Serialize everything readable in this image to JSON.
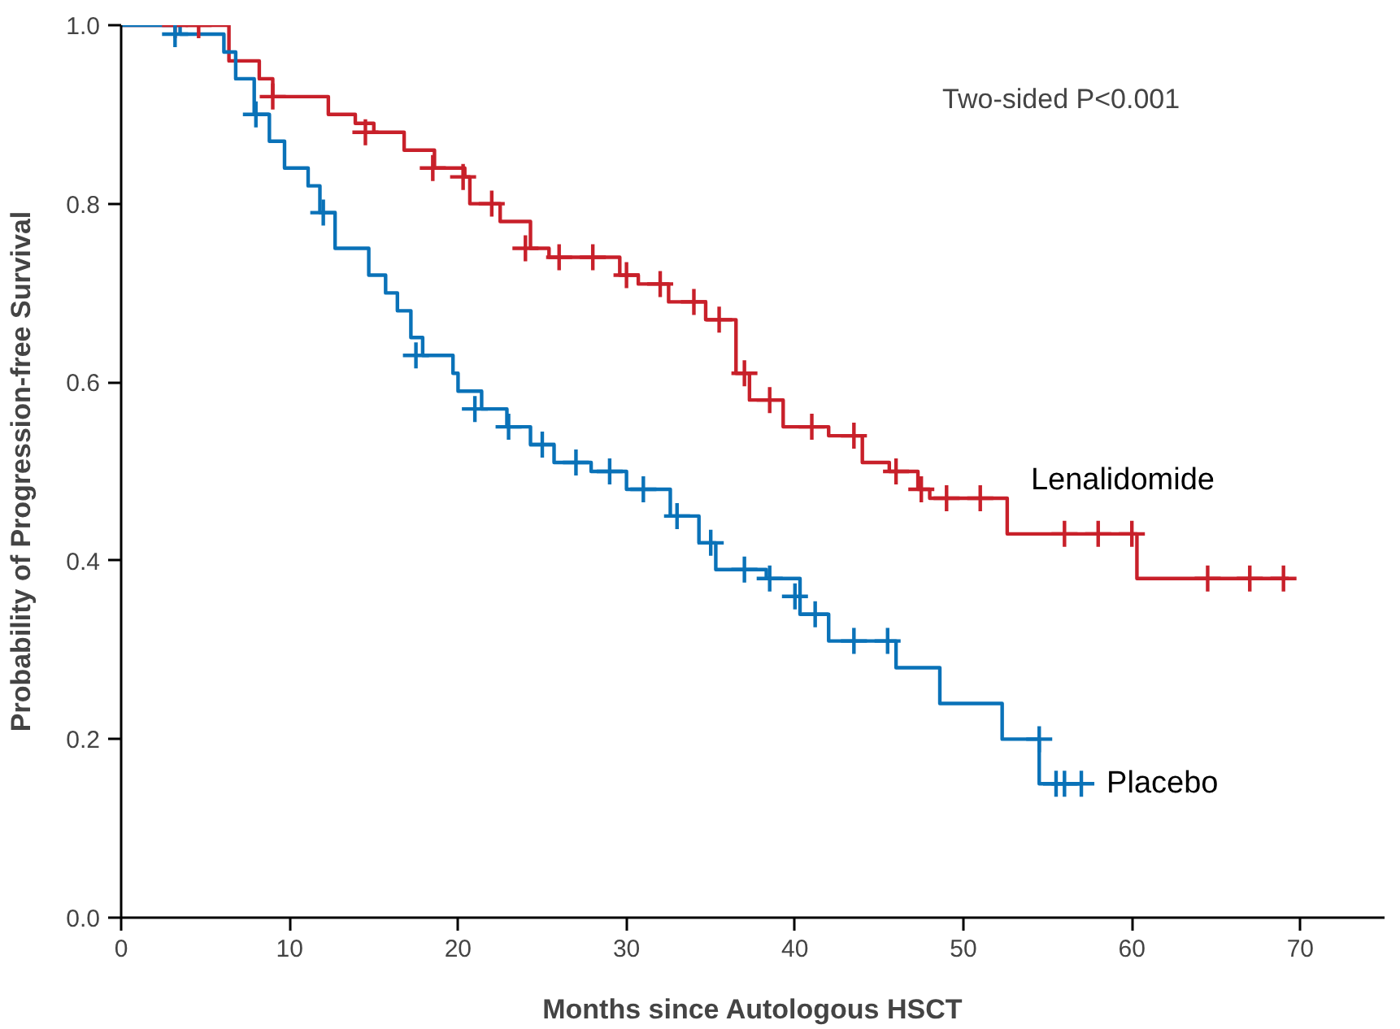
{
  "chart_data": {
    "type": "step",
    "xlabel": "Months since Autologous HSCT",
    "ylabel": "Probability of Progression-free Survival",
    "annotations": [
      "Two-sided P<0.001"
    ],
    "xlim": [
      0,
      75
    ],
    "ylim": [
      0,
      1.0
    ],
    "xticks": [
      0,
      10,
      20,
      30,
      40,
      50,
      60,
      70
    ],
    "yticks": [
      {
        "value": 0,
        "label": "0.0"
      },
      {
        "value": 0.2,
        "label": "0.2"
      },
      {
        "value": 0.4,
        "label": "0.4"
      },
      {
        "value": 0.6,
        "label": "0.6"
      },
      {
        "value": 0.8,
        "label": "0.8"
      },
      {
        "value": 1.0,
        "label": "1.0"
      }
    ],
    "grid": false,
    "marker": "none",
    "line_style": "solid",
    "series": [
      {
        "name": "Lenalidomide",
        "color": "#c8202a",
        "x": [
          0,
          6.4,
          8.2,
          9,
          11.4,
          12.3,
          13.9,
          15,
          16.8,
          18.6,
          20.4,
          20.7,
          22.5,
          24.3,
          25.4,
          29.6,
          30.7,
          32.5,
          34.7,
          36.5,
          37.3,
          39.3,
          42,
          44,
          45.6,
          47.3,
          48,
          52.6,
          60.3,
          69.3
        ],
        "values": [
          1.0,
          0.96,
          0.94,
          0.92,
          0.92,
          0.9,
          0.89,
          0.88,
          0.86,
          0.84,
          0.83,
          0.8,
          0.78,
          0.75,
          0.74,
          0.72,
          0.71,
          0.69,
          0.67,
          0.61,
          0.58,
          0.55,
          0.54,
          0.51,
          0.5,
          0.48,
          0.47,
          0.43,
          0.38,
          0.38
        ]
      },
      {
        "name": "Placebo",
        "color": "#0a72b8",
        "x": [
          0,
          3.5,
          6.1,
          6.8,
          7.9,
          8.8,
          9.7,
          11.1,
          11.8,
          12.7,
          14.7,
          15.7,
          16.4,
          17.2,
          17.9,
          19.7,
          20,
          21.4,
          22.9,
          24.3,
          25.7,
          27.9,
          30,
          32.6,
          34.3,
          35.3,
          38.3,
          40.3,
          42,
          46,
          48.6,
          52.3,
          54.5,
          57
        ],
        "values": [
          1.0,
          0.99,
          0.97,
          0.94,
          0.9,
          0.87,
          0.84,
          0.82,
          0.79,
          0.75,
          0.72,
          0.7,
          0.68,
          0.65,
          0.63,
          0.61,
          0.59,
          0.57,
          0.55,
          0.53,
          0.51,
          0.5,
          0.48,
          0.45,
          0.42,
          0.39,
          0.38,
          0.34,
          0.31,
          0.28,
          0.24,
          0.2,
          0.15,
          0.15
        ]
      },
      {
        "type": "scatter",
        "marker": "cross",
        "color": "#c8202a",
        "x": [
          3.2,
          4.6,
          9,
          14.5,
          18.5,
          20.3,
          22,
          24,
          26,
          28,
          30,
          32,
          34,
          35.5,
          37,
          38.5,
          41,
          43.5,
          46,
          47.5,
          49,
          51,
          56,
          58,
          60,
          64.5,
          67,
          69
        ],
        "values": [
          1.0,
          1.0,
          0.92,
          0.88,
          0.84,
          0.83,
          0.8,
          0.75,
          0.74,
          0.74,
          0.72,
          0.71,
          0.69,
          0.67,
          0.61,
          0.58,
          0.55,
          0.54,
          0.5,
          0.48,
          0.47,
          0.47,
          0.43,
          0.43,
          0.43,
          0.38,
          0.38,
          0.38
        ]
      },
      {
        "type": "scatter",
        "marker": "cross",
        "color": "#0a72b8",
        "x": [
          3.2,
          8,
          12,
          17.5,
          21,
          23,
          25,
          27,
          29,
          31,
          33,
          35,
          37,
          38.5,
          40,
          41.2,
          43.5,
          45.5,
          54.5,
          55.5,
          56,
          57
        ],
        "values": [
          0.99,
          0.9,
          0.79,
          0.63,
          0.57,
          0.55,
          0.53,
          0.51,
          0.5,
          0.48,
          0.45,
          0.42,
          0.39,
          0.38,
          0.36,
          0.34,
          0.31,
          0.31,
          0.2,
          0.15,
          0.15,
          0.15
        ]
      }
    ]
  }
}
